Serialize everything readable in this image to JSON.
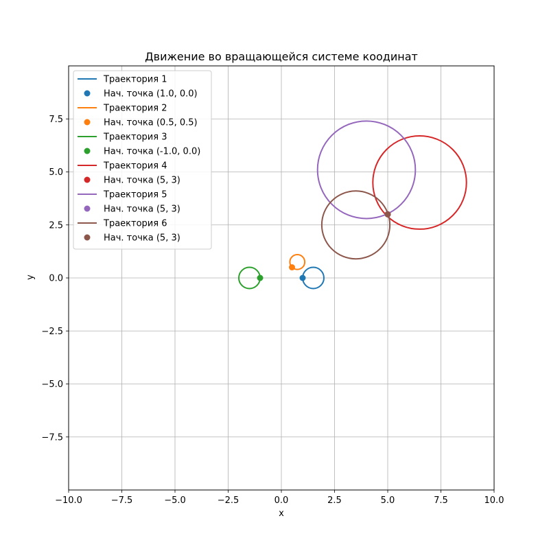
{
  "chart_data": {
    "type": "line",
    "title": "Движение во вращающейся системе коодинат",
    "xlabel": "x",
    "ylabel": "y",
    "xlim": [
      -10,
      10
    ],
    "ylim": [
      -10,
      10
    ],
    "x_ticks": [
      -10.0,
      -7.5,
      -5.0,
      -2.5,
      0.0,
      2.5,
      5.0,
      7.5,
      10.0
    ],
    "x_tick_labels": [
      "−10.0",
      "−7.5",
      "−5.0",
      "−2.5",
      "0.0",
      "2.5",
      "5.0",
      "7.5",
      "10.0"
    ],
    "y_ticks": [
      -7.5,
      -5.0,
      -2.5,
      0.0,
      2.5,
      5.0,
      7.5
    ],
    "y_tick_labels": [
      "−7.5",
      "−5.0",
      "−2.5",
      "0.0",
      "2.5",
      "5.0",
      "7.5"
    ],
    "grid": true,
    "legend_position": "top-left",
    "series": [
      {
        "name": "Траектория 1",
        "color": "#1f77b4",
        "shape": "circle",
        "center": [
          1.5,
          0.0
        ],
        "radius": 0.5
      },
      {
        "name": "Траектория 2",
        "color": "#ff7f0e",
        "shape": "circle",
        "center": [
          0.75,
          0.75
        ],
        "radius": 0.35
      },
      {
        "name": "Траектория 3",
        "color": "#2ca02c",
        "shape": "circle",
        "center": [
          -1.5,
          0.0
        ],
        "radius": 0.5
      },
      {
        "name": "Траектория 4",
        "color": "#d62728",
        "shape": "circle",
        "center": [
          6.5,
          4.5
        ],
        "radius": 2.2
      },
      {
        "name": "Траектория 5",
        "color": "#9467bd",
        "shape": "circle",
        "center": [
          4.0,
          5.1
        ],
        "radius": 2.3
      },
      {
        "name": "Траектория 6",
        "color": "#8c564b",
        "shape": "circle",
        "center": [
          3.5,
          2.5
        ],
        "radius": 1.6
      }
    ],
    "start_points": [
      {
        "name": "Нач. точка (1.0, 0.0)",
        "color": "#1f77b4",
        "x": 1.0,
        "y": 0.0
      },
      {
        "name": "Нач. точка (0.5, 0.5)",
        "color": "#ff7f0e",
        "x": 0.5,
        "y": 0.5
      },
      {
        "name": "Нач. точка (-1.0, 0.0)",
        "color": "#2ca02c",
        "x": -1.0,
        "y": 0.0
      },
      {
        "name": "Нач. точка (5, 3)",
        "color": "#d62728",
        "x": 5,
        "y": 3
      },
      {
        "name": "Нач. точка (5, 3)",
        "color": "#9467bd",
        "x": 5,
        "y": 3
      },
      {
        "name": "Нач. точка (5, 3)",
        "color": "#8c564b",
        "x": 5,
        "y": 3
      }
    ]
  }
}
